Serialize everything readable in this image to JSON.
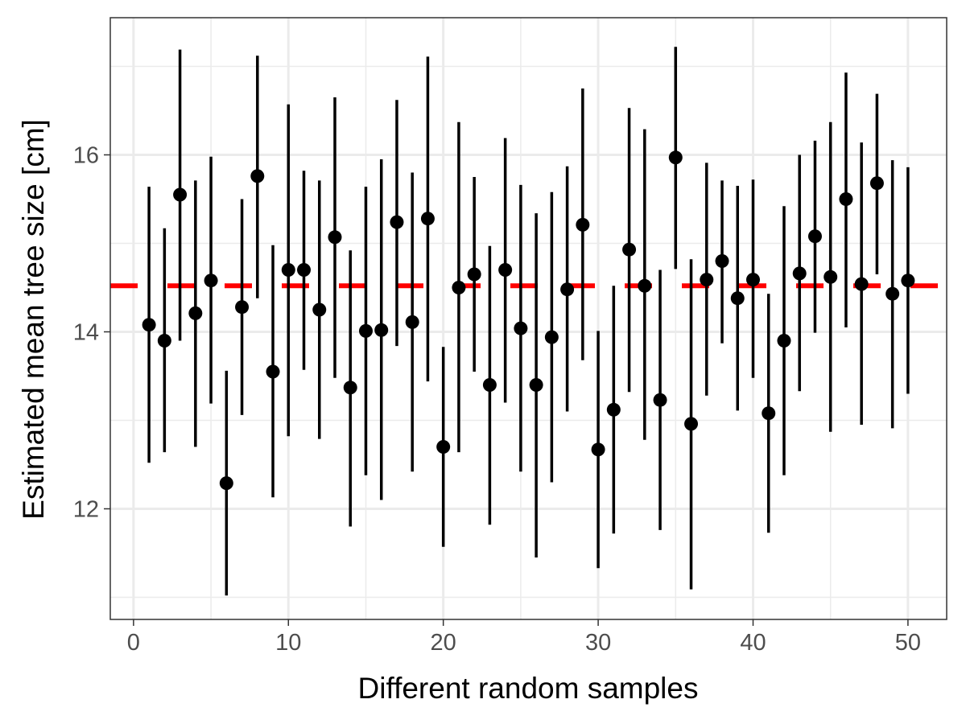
{
  "chart_data": {
    "type": "scatter",
    "xlabel": "Different random samples",
    "ylabel": "Estimated mean tree size [cm]",
    "xlim": [
      -1.5,
      52.5
    ],
    "ylim": [
      10.75,
      17.55
    ],
    "x_ticks": [
      0,
      10,
      20,
      30,
      40,
      50
    ],
    "x_tick_labels": [
      "0",
      "10",
      "20",
      "30",
      "40",
      "50"
    ],
    "y_ticks": [
      12,
      14,
      16
    ],
    "y_tick_labels": [
      "12",
      "14",
      "16"
    ],
    "grid": true,
    "reference_line": {
      "y": 14.52,
      "color": "#ff0000",
      "style": "dashed"
    },
    "point_color": "#000000",
    "series": [
      {
        "x": [
          1,
          2,
          3,
          4,
          5,
          6,
          7,
          8,
          9,
          10,
          11,
          12,
          13,
          14,
          15,
          16,
          17,
          18,
          19,
          20,
          21,
          22,
          23,
          24,
          25,
          26,
          27,
          28,
          29,
          30,
          31,
          32,
          33,
          34,
          35,
          36,
          37,
          38,
          39,
          40,
          41,
          42,
          43,
          44,
          45,
          46,
          47,
          48,
          49,
          50
        ],
        "y": [
          14.08,
          13.9,
          15.55,
          14.21,
          14.58,
          12.29,
          14.28,
          15.76,
          13.55,
          14.7,
          14.7,
          14.25,
          15.07,
          13.37,
          14.01,
          14.02,
          15.24,
          14.11,
          15.28,
          12.7,
          14.5,
          14.65,
          13.4,
          14.7,
          14.04,
          13.4,
          13.94,
          14.48,
          15.21,
          12.67,
          13.12,
          14.93,
          14.52,
          13.23,
          15.97,
          12.96,
          14.59,
          14.8,
          14.38,
          14.59,
          13.08,
          13.9,
          14.66,
          15.08,
          14.62,
          15.5,
          14.54,
          15.68,
          14.43,
          14.58
        ],
        "ymin": [
          12.52,
          12.64,
          13.9,
          12.7,
          13.19,
          11.02,
          13.06,
          14.38,
          12.13,
          12.82,
          13.57,
          12.79,
          13.48,
          11.8,
          12.38,
          12.1,
          13.84,
          12.42,
          13.44,
          11.57,
          12.64,
          13.55,
          11.82,
          13.2,
          12.42,
          11.45,
          12.3,
          13.1,
          13.68,
          11.33,
          11.72,
          13.32,
          12.78,
          11.76,
          14.71,
          11.09,
          13.28,
          13.87,
          13.11,
          13.48,
          11.73,
          12.38,
          13.33,
          13.99,
          12.87,
          14.05,
          12.95,
          14.65,
          12.91,
          13.3
        ],
        "ymax": [
          15.64,
          15.17,
          17.19,
          15.71,
          15.98,
          13.56,
          15.5,
          17.12,
          14.98,
          16.57,
          15.82,
          15.71,
          16.65,
          14.92,
          15.64,
          15.95,
          16.62,
          15.8,
          17.11,
          13.83,
          16.37,
          15.75,
          14.97,
          16.19,
          15.66,
          15.34,
          15.58,
          15.87,
          16.75,
          14.01,
          14.52,
          16.53,
          16.29,
          14.7,
          17.22,
          14.82,
          15.91,
          15.71,
          15.65,
          15.72,
          14.43,
          15.42,
          16.0,
          16.16,
          16.37,
          16.93,
          16.14,
          16.69,
          15.94,
          15.86
        ]
      }
    ]
  }
}
